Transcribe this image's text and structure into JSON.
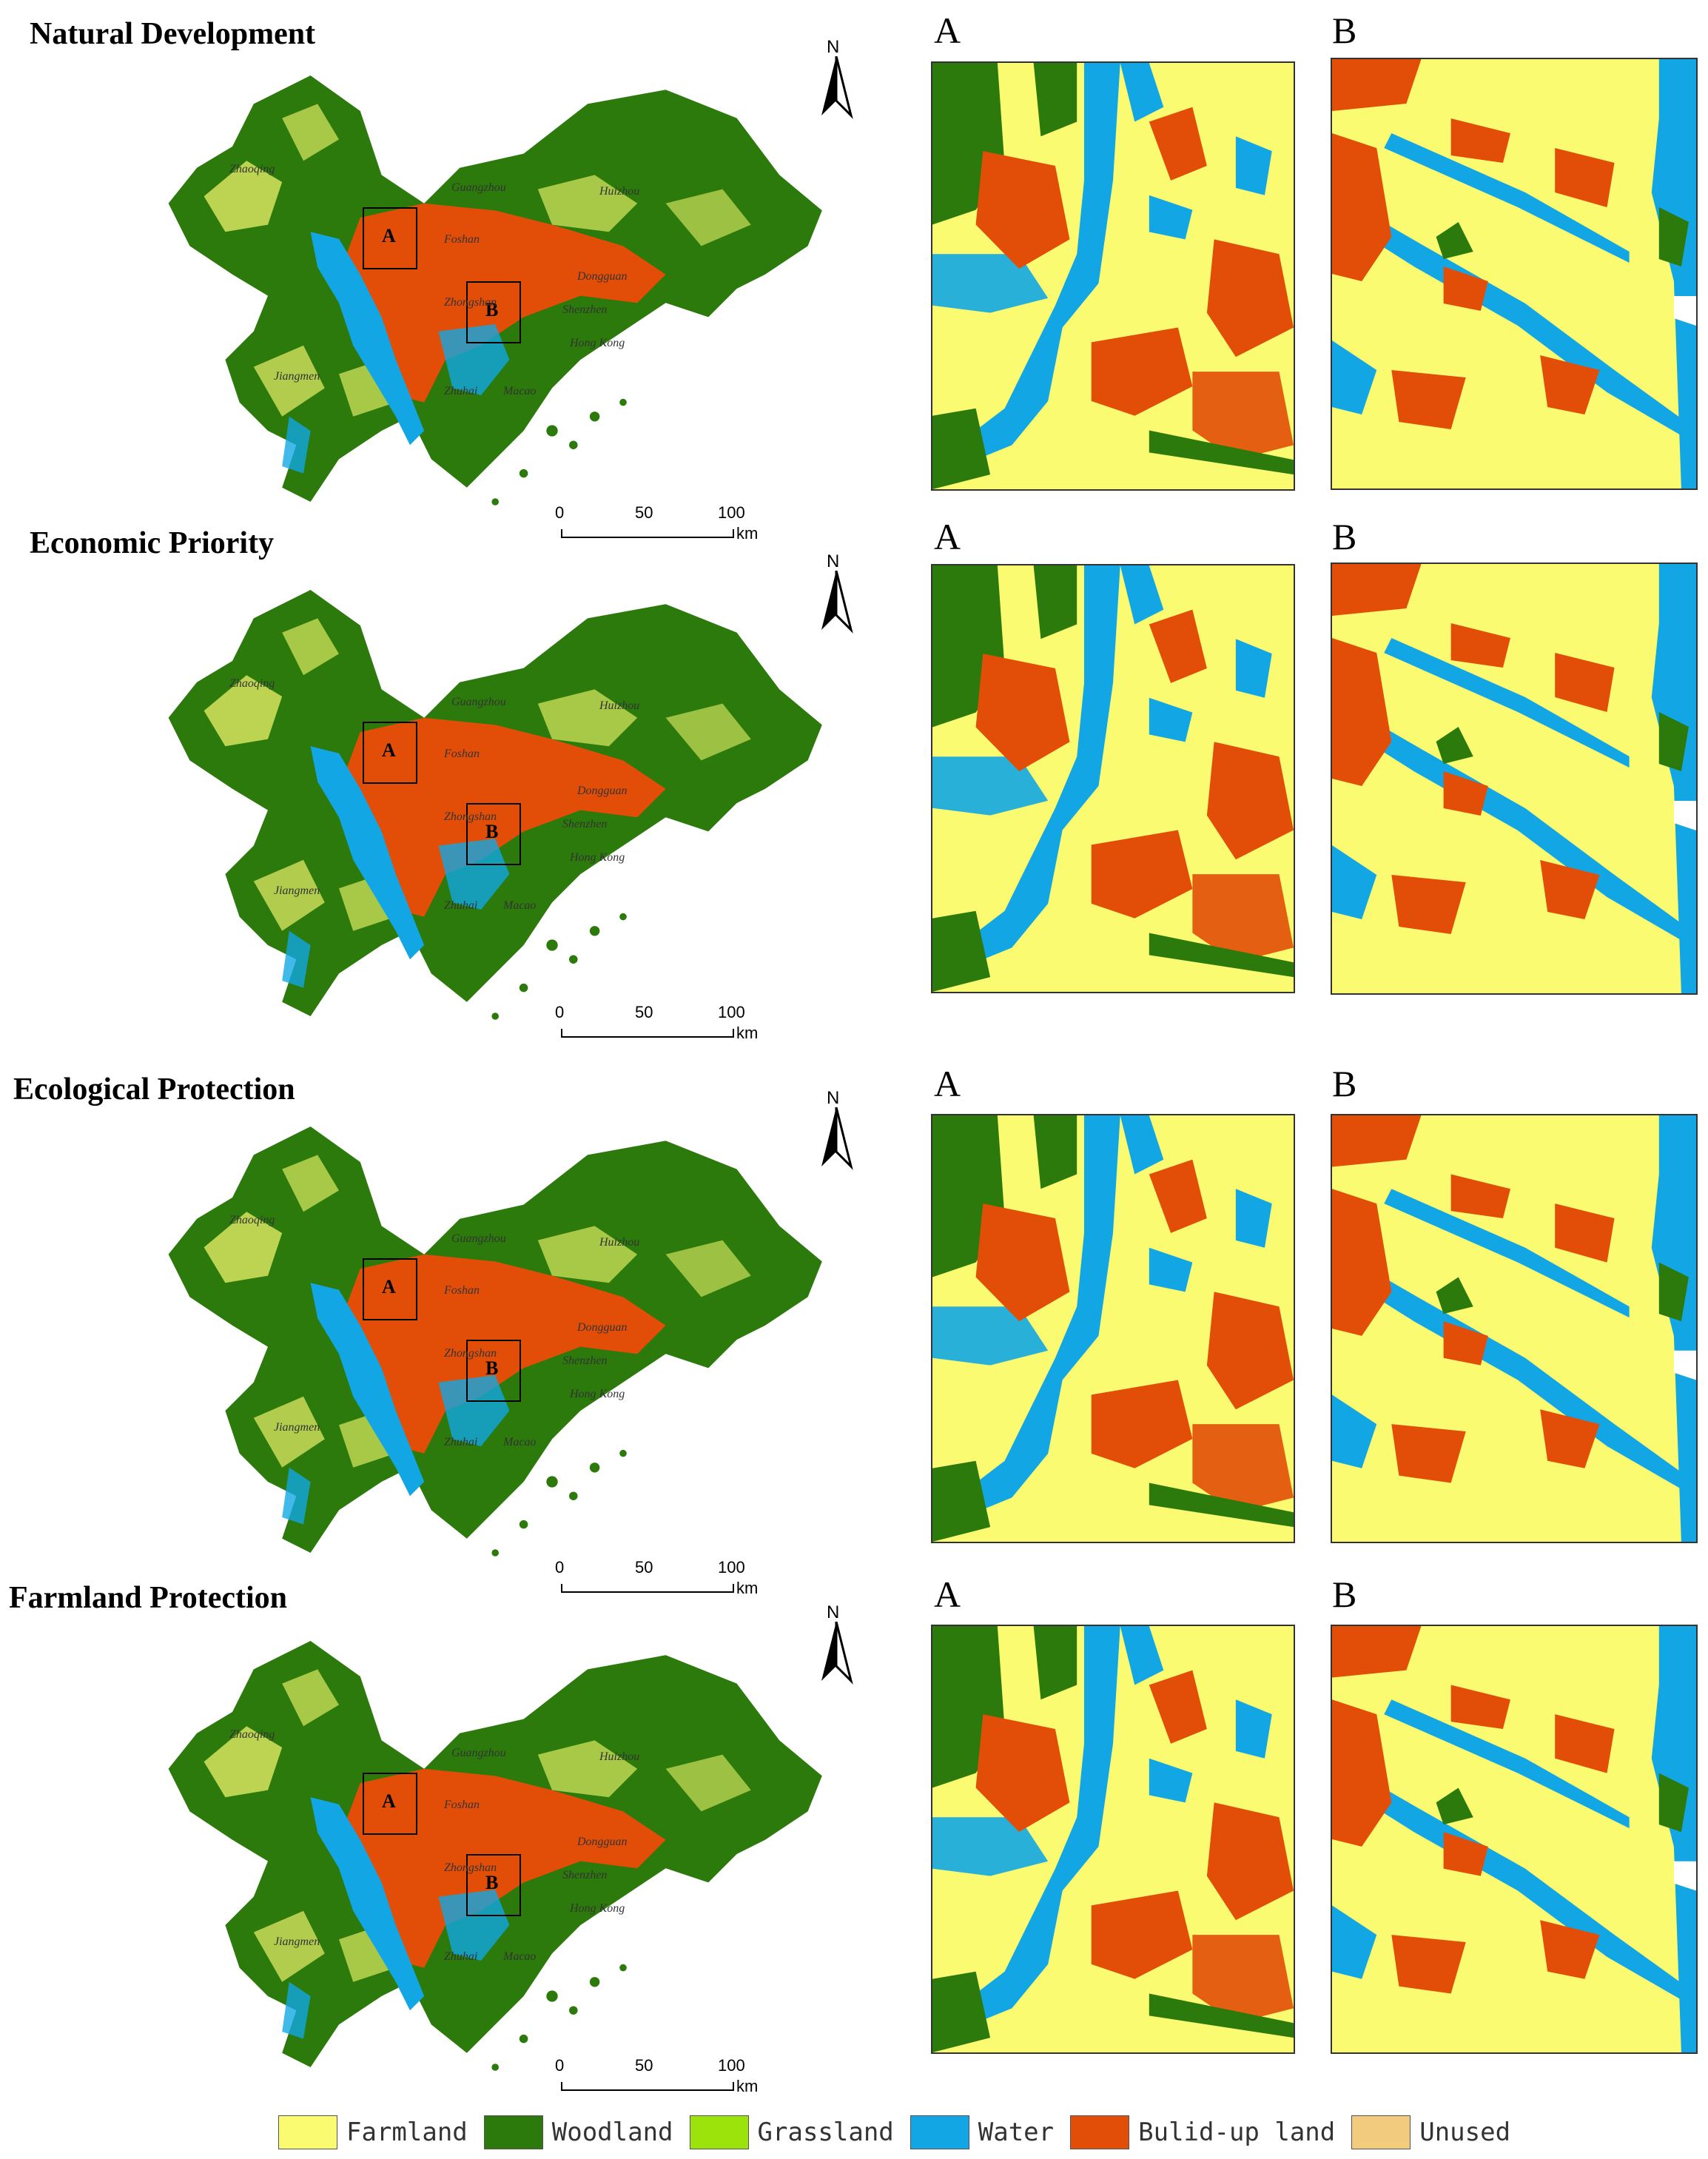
{
  "panels": [
    {
      "title": "Natural Development",
      "inset_a": "A",
      "inset_b": "B"
    },
    {
      "title": "Economic Priority",
      "inset_a": "A",
      "inset_b": "B"
    },
    {
      "title": "Ecological Protection",
      "inset_a": "A",
      "inset_b": "B"
    },
    {
      "title": "Farmland Protection",
      "inset_a": "A",
      "inset_b": "B"
    }
  ],
  "map_labels": {
    "box_a": "A",
    "box_b": "B",
    "cities": [
      "Zhaoqing",
      "Guangzhou",
      "Huizhou",
      "Foshan",
      "Dongguan",
      "Shenzhen",
      "Zhongshan",
      "Hong Kong",
      "Jiangmen",
      "Zhuhai",
      "Macao"
    ]
  },
  "north_arrow": {
    "label": "N",
    "icon": "north-arrow-icon"
  },
  "scale_bar": {
    "ticks": [
      "0",
      "50",
      "100"
    ],
    "unit": "km"
  },
  "legend": {
    "items": [
      {
        "label": "Farmland",
        "color": "#FBFB71"
      },
      {
        "label": "Woodland",
        "color": "#2B7A0B"
      },
      {
        "label": "Grassland",
        "color": "#9BE30B"
      },
      {
        "label": "Water",
        "color": "#12A7E4"
      },
      {
        "label": "Bulid-up land",
        "color": "#E24E08"
      },
      {
        "label": "Unused",
        "color": "#F3CB7E"
      }
    ]
  },
  "colors": {
    "farmland": "#FBFB71",
    "woodland": "#2B7A0B",
    "grassland": "#9BE30B",
    "water": "#12A7E4",
    "builtup": "#E24E08",
    "unused": "#F3CB7E"
  }
}
